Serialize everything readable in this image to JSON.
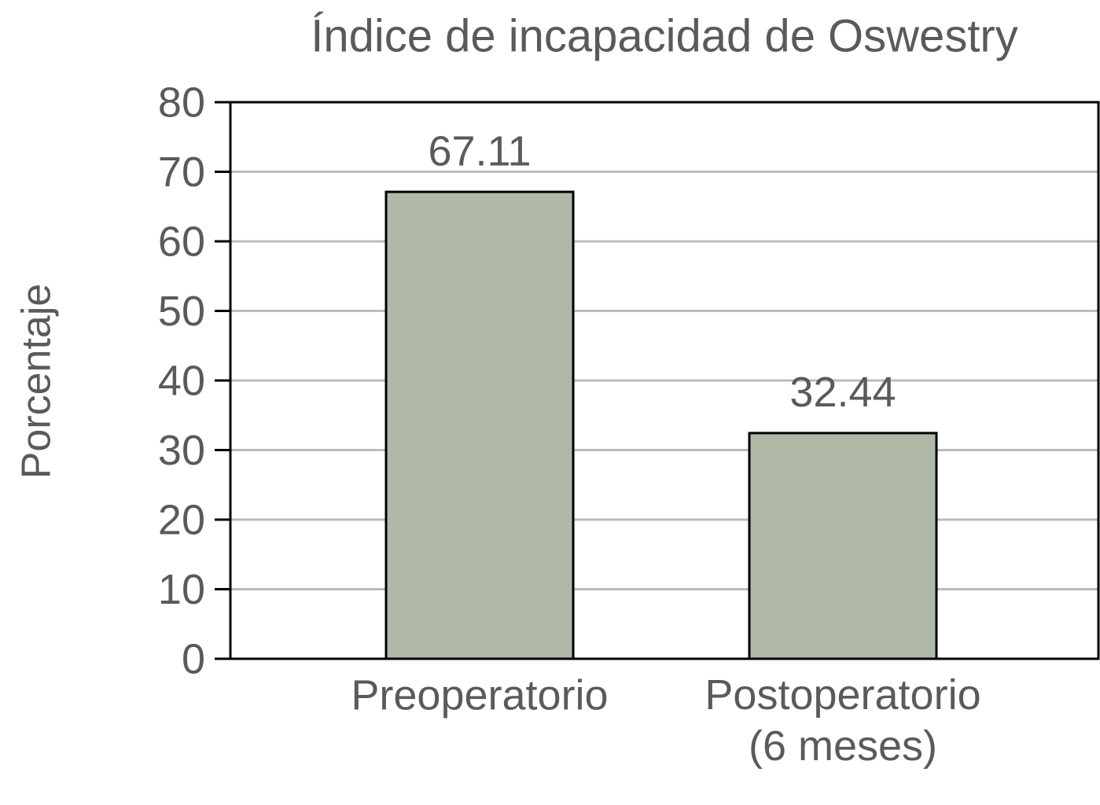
{
  "chart_data": {
    "type": "bar",
    "title": "Índice de incapacidad de Oswestry",
    "y_label": "Porcentaje",
    "categories": [
      "Preoperatorio",
      "Postoperatorio\n(6 meses)"
    ],
    "values": [
      67.11,
      32.44
    ],
    "color": "#b0b8a8",
    "ylim": [
      0,
      80
    ],
    "yticks": [
      0,
      10,
      20,
      30,
      40,
      50,
      60,
      70,
      80
    ],
    "grid": true
  }
}
